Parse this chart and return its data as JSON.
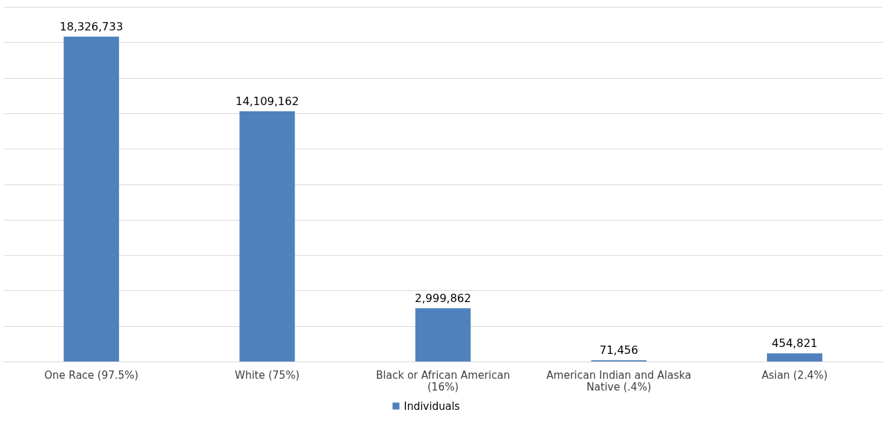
{
  "chart_data": {
    "type": "bar",
    "categories": [
      "One Race (97.5%)",
      "White (75%)",
      "Black or African American (16%)",
      "American Indian and Alaska Native (.4%)",
      "Asian (2.4%)"
    ],
    "series": [
      {
        "name": "Individuals",
        "color": "#4f81bd",
        "values": [
          18326733,
          14109162,
          2999862,
          71456,
          454821
        ],
        "value_labels": [
          "18,326,733",
          "14,109,162",
          "2,999,862",
          "71,456",
          "454,821"
        ]
      }
    ],
    "tick_labels": "x",
    "grid": "y",
    "legend": "bottom"
  }
}
